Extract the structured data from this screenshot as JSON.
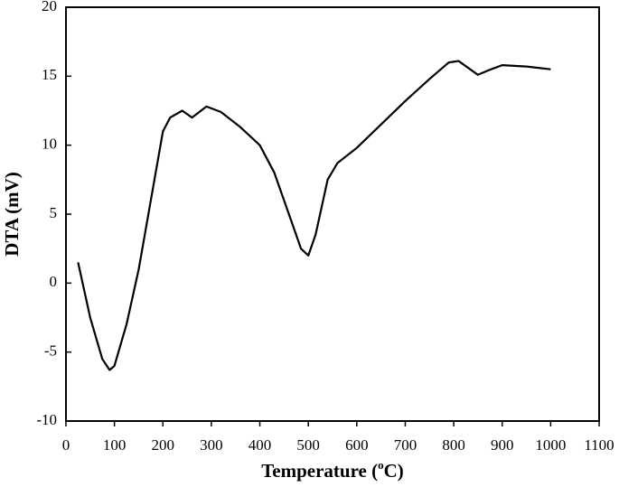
{
  "chart_data": {
    "type": "line",
    "xlabel": [
      "Temperature (",
      "o",
      "C)"
    ],
    "ylabel": "DTA (mV)",
    "xlim": [
      0,
      1100
    ],
    "xticks": [
      0,
      100,
      200,
      300,
      400,
      500,
      600,
      700,
      800,
      900,
      1000,
      1100
    ],
    "ylim": [
      -10,
      20
    ],
    "yticks": [
      -10,
      -5,
      0,
      5,
      10,
      15,
      20
    ],
    "series": [
      {
        "color": "#000000",
        "x": [
          25,
          50,
          75,
          90,
          100,
          125,
          150,
          175,
          200,
          215,
          240,
          260,
          290,
          320,
          360,
          400,
          430,
          460,
          485,
          500,
          515,
          540,
          560,
          600,
          650,
          700,
          750,
          790,
          810,
          830,
          850,
          870,
          900,
          950,
          1000
        ],
        "values": [
          1.5,
          -2.5,
          -5.5,
          -6.3,
          -6,
          -3,
          1,
          6,
          11,
          12,
          12.5,
          12,
          12.8,
          12.4,
          11.3,
          10,
          8,
          5,
          2.5,
          2,
          3.5,
          7.5,
          8.7,
          9.8,
          11.5,
          13.2,
          14.8,
          16,
          16.1,
          15.6,
          15.1,
          15.4,
          15.8,
          15.7,
          15.5
        ]
      }
    ]
  }
}
